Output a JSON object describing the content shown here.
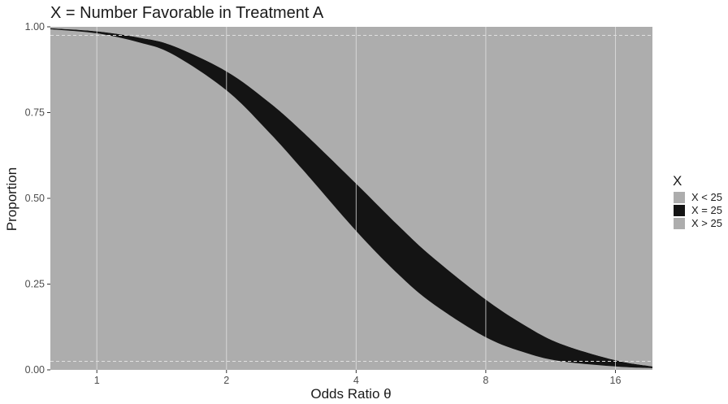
{
  "chart_data": {
    "type": "area",
    "title": "X = Number Favorable in Treatment A",
    "xlabel": "Odds Ratio θ",
    "ylabel": "Proportion",
    "x_scale": "log2",
    "xlim": [
      0.78,
      19.5
    ],
    "ylim": [
      0,
      1
    ],
    "x_ticks": [
      1,
      2,
      4,
      8,
      16
    ],
    "x_tick_labels": [
      "1",
      "2",
      "4",
      "8",
      "16"
    ],
    "y_ticks": [
      0,
      0.25,
      0.5,
      0.75,
      1
    ],
    "y_tick_labels": [
      "0.00",
      "0.25",
      "0.50",
      "0.75",
      "1.00"
    ],
    "reference_lines_y": [
      0.025,
      0.975
    ],
    "grid": true,
    "legend": {
      "title": "X",
      "position": "right",
      "entries": [
        {
          "label": "X < 25",
          "color": "#adadad"
        },
        {
          "label": "X = 25",
          "color": "#141414"
        },
        {
          "label": "X > 25",
          "color": "#adadad"
        }
      ]
    },
    "series": [
      {
        "name": "X > 25",
        "x": [
          0.78,
          1,
          1.25,
          1.5,
          2,
          2.5,
          3,
          4,
          5,
          6,
          8,
          10,
          12,
          16,
          19.5
        ],
        "values": [
          0.993,
          0.981,
          0.955,
          0.92,
          0.815,
          0.695,
          0.585,
          0.405,
          0.28,
          0.195,
          0.095,
          0.048,
          0.025,
          0.01,
          0.005
        ]
      },
      {
        "name": "X = 25",
        "x": [
          0.78,
          1,
          1.25,
          1.5,
          2,
          2.5,
          3,
          4,
          5,
          6,
          8,
          10,
          12,
          16,
          19.5
        ],
        "values": [
          0.003,
          0.006,
          0.014,
          0.025,
          0.055,
          0.087,
          0.11,
          0.138,
          0.142,
          0.135,
          0.11,
          0.077,
          0.05,
          0.018,
          0.005
        ]
      },
      {
        "name": "X < 25",
        "x": [
          0.78,
          1,
          1.25,
          1.5,
          2,
          2.5,
          3,
          4,
          5,
          6,
          8,
          10,
          12,
          16,
          19.5
        ],
        "values": [
          0.004,
          0.013,
          0.031,
          0.055,
          0.13,
          0.218,
          0.305,
          0.457,
          0.578,
          0.67,
          0.795,
          0.875,
          0.925,
          0.972,
          0.99
        ]
      }
    ],
    "colors": {
      "panel": "#adadad",
      "band": "#141414",
      "grid": "#e6e6e6",
      "reference_line": "#e0e0e0"
    }
  }
}
